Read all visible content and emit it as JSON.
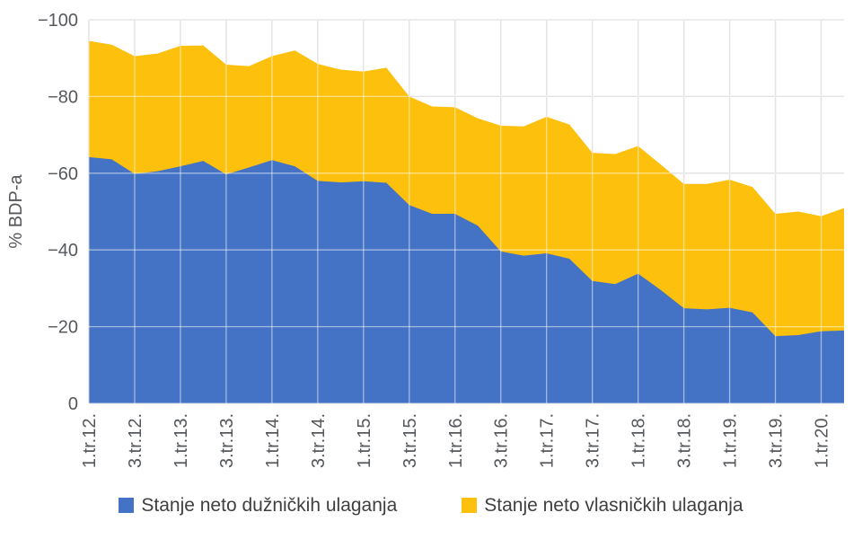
{
  "chart": {
    "y_axis_title": "% BDP-a",
    "legend": [
      {
        "label": "Stanje neto dužničkih ulaganja",
        "color": "#4472C4"
      },
      {
        "label": "Stanje neto vlasničkih ulaganja",
        "color": "#FDC00D"
      }
    ],
    "colors": {
      "gridline": "#c9c9c9",
      "gridline_over_fill": "rgba(255,255,255,0.5)",
      "tick_text": "#55585c",
      "background": "#ffffff"
    }
  },
  "chart_data": {
    "type": "area",
    "stacked": true,
    "title": "",
    "xlabel": "",
    "ylabel": "% BDP-a",
    "y_axis_inverted": true,
    "ylim": [
      0,
      -100
    ],
    "y_ticks": [
      0,
      -20,
      -40,
      -60,
      -80,
      -100
    ],
    "y_tick_labels": [
      "0",
      "−20",
      "−40",
      "−60",
      "−80",
      "−100"
    ],
    "grid": true,
    "legend_position": "bottom",
    "x": [
      "1.tr.12.",
      "2.tr.12.",
      "3.tr.12.",
      "4.tr.12.",
      "1.tr.13.",
      "2.tr.13.",
      "3.tr.13.",
      "4.tr.13.",
      "1.tr.14.",
      "2.tr.14.",
      "3.tr.14.",
      "4.tr.14.",
      "1.tr.15.",
      "2.tr.15.",
      "3.tr.15.",
      "4.tr.15.",
      "1.tr.16.",
      "2.tr.16.",
      "3.tr.16.",
      "4.tr.16.",
      "1.tr.17.",
      "2.tr.17.",
      "3.tr.17.",
      "4.tr.17.",
      "1.tr.18.",
      "2.tr.18.",
      "3.tr.18.",
      "4.tr.18.",
      "1.tr.19.",
      "2.tr.19.",
      "3.tr.19.",
      "4.tr.19.",
      "1.tr.20.",
      "2.tr.20."
    ],
    "x_tick_labels": [
      "1.tr.12.",
      "3.tr.12.",
      "1.tr.13.",
      "3.tr.13.",
      "1.tr.14.",
      "3.tr.14.",
      "1.tr.15.",
      "3.tr.15.",
      "1.tr.16.",
      "3.tr.16.",
      "1.tr.17.",
      "3.tr.17.",
      "1.tr.18.",
      "3.tr.18.",
      "1.tr.19.",
      "3.tr.19.",
      "1.tr.20."
    ],
    "x_tick_every": 2,
    "series": [
      {
        "name": "Stanje neto dužničkih ulaganja",
        "color": "#4472C4",
        "values": [
          -64.2,
          -63.6,
          -59.8,
          -60.5,
          -61.8,
          -63.2,
          -59.7,
          -61.5,
          -63.4,
          -61.8,
          -58.0,
          -57.6,
          -57.9,
          -57.5,
          -51.7,
          -49.4,
          -49.4,
          -46.3,
          -39.6,
          -38.5,
          -39.1,
          -37.7,
          -31.9,
          -31.1,
          -33.8,
          -29.5,
          -24.8,
          -24.5,
          -24.9,
          -23.7,
          -17.5,
          -17.8,
          -18.8,
          -19.0
        ]
      },
      {
        "name": "Stanje neto vlasničkih ulaganja",
        "color": "#FDC00D",
        "values": [
          -30.3,
          -29.9,
          -30.7,
          -30.7,
          -31.4,
          -30.1,
          -28.6,
          -26.4,
          -27.1,
          -30.2,
          -30.5,
          -29.4,
          -28.6,
          -30.0,
          -28.3,
          -28.0,
          -27.8,
          -28.0,
          -32.8,
          -33.7,
          -35.6,
          -35.0,
          -33.4,
          -33.9,
          -33.3,
          -32.7,
          -32.4,
          -32.7,
          -33.4,
          -32.7,
          -31.9,
          -32.2,
          -30.0,
          -31.9
        ]
      }
    ]
  }
}
